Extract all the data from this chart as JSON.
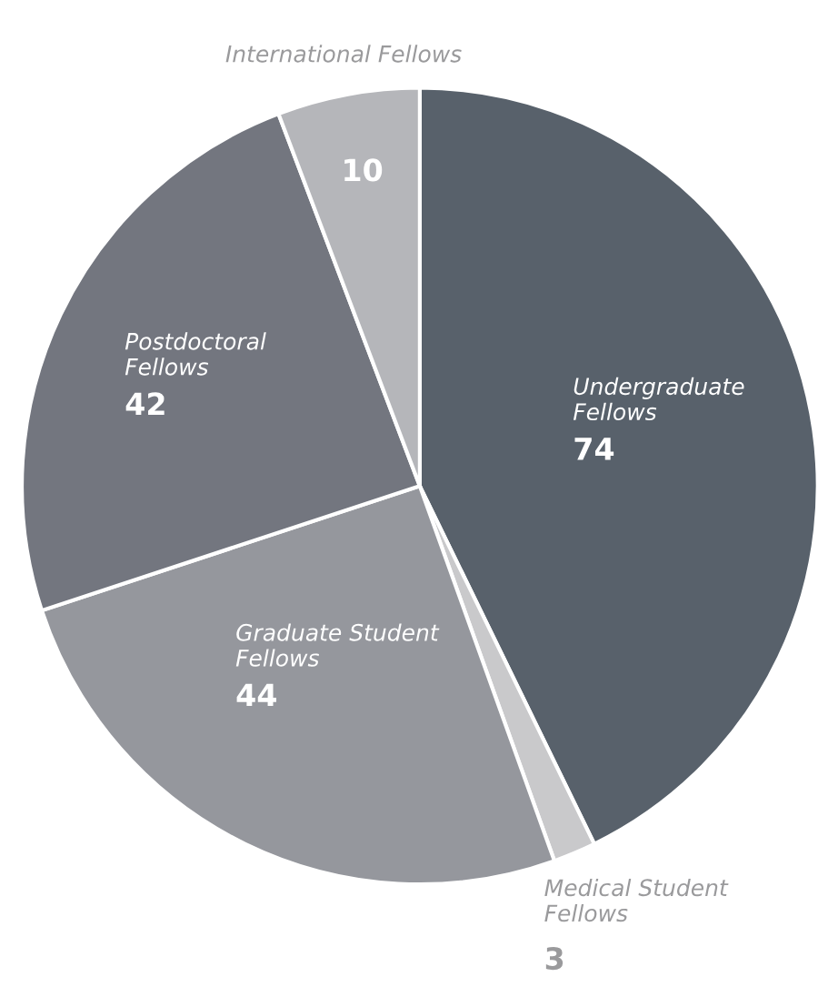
{
  "chart_data": {
    "type": "pie",
    "categories": [
      "Undergraduate Fellows",
      "Medical Student Fellows",
      "Graduate Student Fellows",
      "Postdoctoral Fellows",
      "International Fellows"
    ],
    "values": [
      74,
      3,
      44,
      42,
      10
    ],
    "colors": [
      "#58616b",
      "#c9c9cb",
      "#95979d",
      "#73767f",
      "#b5b6ba"
    ],
    "data_labels": true
  }
}
